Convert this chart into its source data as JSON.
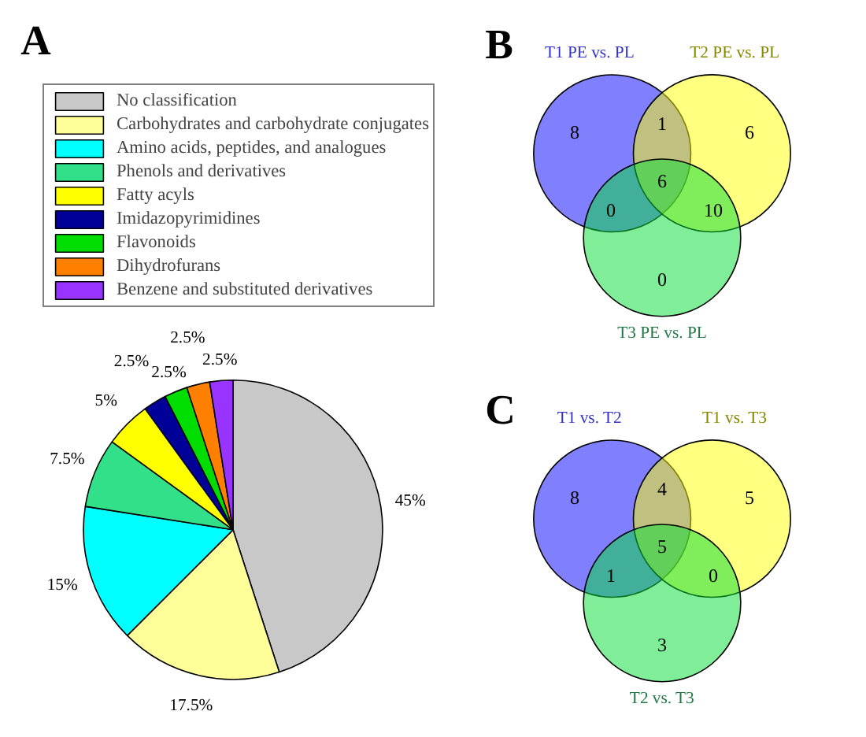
{
  "chart_data": [
    {
      "type": "pie",
      "title": "A",
      "categories": [
        "No classification",
        "Carbohydrates and carbohydrate conjugates",
        "Amino acids, peptides, and analogues",
        "Phenols and derivatives",
        "Fatty acyls",
        "Imidazopyrimidines",
        "Flavonoids",
        "Dihydrofurans",
        "Benzene and substituted derivatives"
      ],
      "values": [
        45,
        17.5,
        15,
        7.5,
        5,
        2.5,
        2.5,
        2.5,
        2.5
      ],
      "value_labels": [
        "45%",
        "17.5%",
        "15%",
        "7.5%",
        "5%",
        "2.5%",
        "2.5%",
        "2.5%",
        "2.5%"
      ],
      "colors": [
        "#c8c8c8",
        "#ffff99",
        "#00ffff",
        "#33e08a",
        "#ffff00",
        "#000099",
        "#00dd00",
        "#ff8000",
        "#9933ff"
      ],
      "legend": "top"
    },
    {
      "type": "other",
      "title": "B",
      "series": [
        {
          "name": "T1 PE vs. PL",
          "color": "#3333cc"
        },
        {
          "name": "T2 PE vs. PL",
          "color": "#888800"
        },
        {
          "name": "T3 PE vs. PL",
          "color": "#227744"
        }
      ],
      "annotations": [
        "8",
        "1",
        "6",
        "0",
        "6",
        "10",
        "0"
      ]
    },
    {
      "type": "other",
      "title": "C",
      "series": [
        {
          "name": "T1 vs. T2",
          "color": "#3333cc"
        },
        {
          "name": "T1 vs. T3",
          "color": "#888800"
        },
        {
          "name": "T2 vs. T3",
          "color": "#227744"
        }
      ],
      "annotations": [
        "8",
        "4",
        "5",
        "1",
        "5",
        "0",
        "3"
      ]
    }
  ]
}
